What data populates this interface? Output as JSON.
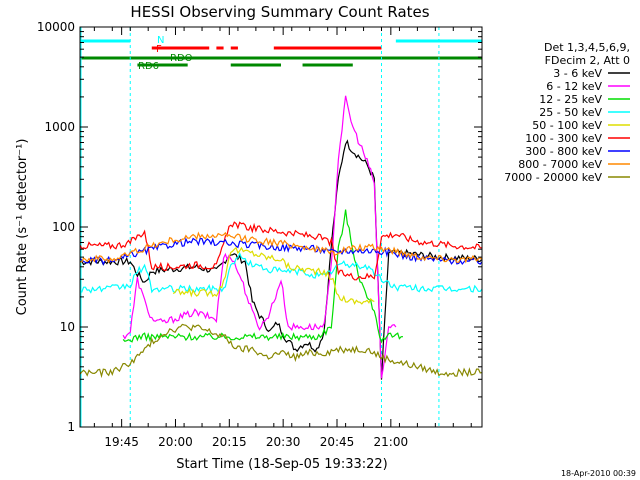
{
  "chart_data": {
    "type": "line",
    "title": "HESSI Observing Summary Count Rates",
    "xlabel": "Start Time (18-Sep-05 19:33:22)",
    "ylabel": "Count Rate (s⁻¹ detector⁻¹)",
    "yscale": "log",
    "ylim": [
      1,
      10000
    ],
    "xlim_minutes": [
      0,
      112
    ],
    "x_ticks": [
      {
        "label": "19:45",
        "t": 11.6
      },
      {
        "label": "20:00",
        "t": 26.6
      },
      {
        "label": "20:15",
        "t": 41.6
      },
      {
        "label": "20:30",
        "t": 56.6
      },
      {
        "label": "20:45",
        "t": 71.6
      },
      {
        "label": "21:00",
        "t": 86.6
      }
    ],
    "y_ticks": [
      {
        "label": "1",
        "v": 1
      },
      {
        "label": "10",
        "v": 10
      },
      {
        "label": "100",
        "v": 100
      },
      {
        "label": "1000",
        "v": 1000
      },
      {
        "label": "10000",
        "v": 10000
      }
    ],
    "legend_header": [
      "Det 1,3,4,5,6,9,",
      "FDecim 2, Att 0"
    ],
    "legend_position": "right",
    "flag_labels": {
      "night": "N",
      "flare": "F",
      "rdo": "RDO",
      "rd6": "RD6"
    },
    "series": [
      {
        "name": "3 - 6 keV",
        "color": "#000000",
        "points": [
          [
            0,
            45
          ],
          [
            14,
            45
          ],
          [
            16,
            34
          ],
          [
            18,
            28
          ],
          [
            20,
            36
          ],
          [
            26,
            38
          ],
          [
            32,
            40
          ],
          [
            38,
            36
          ],
          [
            42,
            55
          ],
          [
            46,
            45
          ],
          [
            48,
            18
          ],
          [
            50,
            13
          ],
          [
            53,
            9
          ],
          [
            55,
            11
          ],
          [
            57,
            8
          ],
          [
            60,
            6
          ],
          [
            63,
            7
          ],
          [
            66,
            6
          ],
          [
            68,
            9
          ],
          [
            70,
            65
          ],
          [
            72,
            300
          ],
          [
            74,
            720
          ],
          [
            76,
            580
          ],
          [
            80,
            420
          ],
          [
            82,
            300
          ],
          [
            84,
            3
          ],
          [
            86,
            55
          ],
          [
            90,
            55
          ],
          [
            100,
            50
          ],
          [
            112,
            48
          ]
        ]
      },
      {
        "name": "6 - 12 keV",
        "color": "#ff00ff",
        "points": [
          [
            12,
            8
          ],
          [
            14,
            9
          ],
          [
            16,
            30
          ],
          [
            18,
            18
          ],
          [
            20,
            12
          ],
          [
            23,
            11
          ],
          [
            26,
            12
          ],
          [
            32,
            14
          ],
          [
            38,
            12
          ],
          [
            40,
            50
          ],
          [
            42,
            52
          ],
          [
            45,
            30
          ],
          [
            48,
            14
          ],
          [
            50,
            10
          ],
          [
            52,
            12
          ],
          [
            54,
            18
          ],
          [
            56,
            30
          ],
          [
            58,
            10
          ],
          [
            60,
            10
          ],
          [
            64,
            10
          ],
          [
            68,
            10
          ],
          [
            70,
            40
          ],
          [
            72,
            500
          ],
          [
            74,
            1900
          ],
          [
            76,
            1000
          ],
          [
            80,
            450
          ],
          [
            82,
            280
          ],
          [
            84,
            3
          ],
          [
            86,
            10
          ],
          [
            88,
            10
          ]
        ]
      },
      {
        "name": "12 - 25 keV",
        "color": "#00dd00",
        "points": [
          [
            12,
            7
          ],
          [
            16,
            8
          ],
          [
            20,
            8
          ],
          [
            26,
            8
          ],
          [
            32,
            8
          ],
          [
            38,
            8
          ],
          [
            42,
            8
          ],
          [
            46,
            8
          ],
          [
            50,
            8
          ],
          [
            56,
            8
          ],
          [
            62,
            8
          ],
          [
            66,
            8
          ],
          [
            70,
            10
          ],
          [
            72,
            60
          ],
          [
            74,
            140
          ],
          [
            76,
            60
          ],
          [
            78,
            30
          ],
          [
            80,
            20
          ],
          [
            82,
            15
          ],
          [
            84,
            7
          ],
          [
            86,
            8
          ],
          [
            90,
            8
          ]
        ]
      },
      {
        "name": "25 - 50 keV",
        "color": "#00ffff",
        "points": [
          [
            0,
            24
          ],
          [
            8,
            24
          ],
          [
            14,
            26
          ],
          [
            16,
            36
          ],
          [
            18,
            40
          ],
          [
            20,
            24
          ],
          [
            24,
            24
          ],
          [
            28,
            24
          ],
          [
            32,
            24
          ],
          [
            36,
            24
          ],
          [
            40,
            24
          ],
          [
            42,
            40
          ],
          [
            44,
            52
          ],
          [
            48,
            42
          ],
          [
            52,
            38
          ],
          [
            56,
            36
          ],
          [
            60,
            36
          ],
          [
            64,
            34
          ],
          [
            68,
            32
          ],
          [
            70,
            36
          ],
          [
            72,
            42
          ],
          [
            76,
            42
          ],
          [
            80,
            40
          ],
          [
            84,
            30
          ],
          [
            88,
            25
          ],
          [
            100,
            24
          ],
          [
            112,
            24
          ]
        ]
      },
      {
        "name": "50 - 100 keV",
        "color": "#dddd00",
        "points": [
          [
            26,
            22
          ],
          [
            32,
            22
          ],
          [
            38,
            22
          ],
          [
            40,
            28
          ],
          [
            42,
            60
          ],
          [
            48,
            55
          ],
          [
            52,
            50
          ],
          [
            56,
            48
          ],
          [
            58,
            40
          ],
          [
            62,
            38
          ],
          [
            66,
            36
          ],
          [
            70,
            32
          ],
          [
            72,
            20
          ],
          [
            76,
            18
          ],
          [
            80,
            18
          ],
          [
            82,
            18
          ]
        ]
      },
      {
        "name": "100 - 300 keV",
        "color": "#ff0000",
        "points": [
          [
            0,
            65
          ],
          [
            10,
            65
          ],
          [
            14,
            70
          ],
          [
            16,
            80
          ],
          [
            18,
            90
          ],
          [
            20,
            40
          ],
          [
            26,
            40
          ],
          [
            32,
            42
          ],
          [
            38,
            40
          ],
          [
            42,
            110
          ],
          [
            46,
            100
          ],
          [
            50,
            95
          ],
          [
            56,
            90
          ],
          [
            60,
            85
          ],
          [
            66,
            80
          ],
          [
            70,
            70
          ],
          [
            72,
            35
          ],
          [
            76,
            32
          ],
          [
            80,
            32
          ],
          [
            82,
            32
          ],
          [
            84,
            80
          ],
          [
            88,
            85
          ],
          [
            92,
            75
          ],
          [
            96,
            70
          ],
          [
            100,
            68
          ],
          [
            104,
            65
          ],
          [
            112,
            62
          ]
        ]
      },
      {
        "name": "300 - 800 keV",
        "color": "#0000ff",
        "points": [
          [
            0,
            46
          ],
          [
            10,
            46
          ],
          [
            16,
            55
          ],
          [
            20,
            60
          ],
          [
            26,
            68
          ],
          [
            32,
            72
          ],
          [
            38,
            70
          ],
          [
            42,
            68
          ],
          [
            48,
            66
          ],
          [
            52,
            64
          ],
          [
            58,
            62
          ],
          [
            64,
            62
          ],
          [
            70,
            56
          ],
          [
            74,
            58
          ],
          [
            78,
            58
          ],
          [
            82,
            58
          ],
          [
            86,
            56
          ],
          [
            90,
            52
          ],
          [
            96,
            48
          ],
          [
            104,
            46
          ],
          [
            112,
            45
          ]
        ]
      },
      {
        "name": "800 - 7000 keV",
        "color": "#ff8800",
        "points": [
          [
            0,
            48
          ],
          [
            10,
            48
          ],
          [
            16,
            58
          ],
          [
            20,
            65
          ],
          [
            26,
            74
          ],
          [
            32,
            80
          ],
          [
            38,
            82
          ],
          [
            42,
            80
          ],
          [
            48,
            75
          ],
          [
            54,
            70
          ],
          [
            60,
            66
          ],
          [
            66,
            60
          ],
          [
            70,
            55
          ],
          [
            74,
            60
          ],
          [
            78,
            62
          ],
          [
            82,
            62
          ],
          [
            86,
            60
          ],
          [
            90,
            55
          ],
          [
            96,
            50
          ],
          [
            104,
            48
          ],
          [
            112,
            47
          ]
        ]
      },
      {
        "name": "7000 - 20000 keV",
        "color": "#888800",
        "points": [
          [
            0,
            3.5
          ],
          [
            8,
            3.5
          ],
          [
            12,
            4
          ],
          [
            16,
            5
          ],
          [
            20,
            7
          ],
          [
            24,
            9
          ],
          [
            28,
            10
          ],
          [
            32,
            10
          ],
          [
            36,
            9
          ],
          [
            40,
            8
          ],
          [
            44,
            6
          ],
          [
            48,
            6
          ],
          [
            52,
            5
          ],
          [
            56,
            5.5
          ],
          [
            60,
            5
          ],
          [
            64,
            5.5
          ],
          [
            68,
            5.5
          ],
          [
            72,
            6
          ],
          [
            76,
            6
          ],
          [
            80,
            6
          ],
          [
            84,
            5
          ],
          [
            88,
            4.5
          ],
          [
            94,
            4
          ],
          [
            100,
            3.5
          ],
          [
            106,
            3.5
          ],
          [
            112,
            3.5
          ]
        ]
      }
    ],
    "attenuator_flags": {
      "color": "#00ffff",
      "start": 0,
      "end": 16
    },
    "flare_flags": {
      "color": "#ff0000",
      "start": 20,
      "end": 84
    },
    "rdo_flags": {
      "color": "#008800",
      "start": 0,
      "end": 112
    }
  },
  "timestamp": "18-Apr-2010 00:39"
}
